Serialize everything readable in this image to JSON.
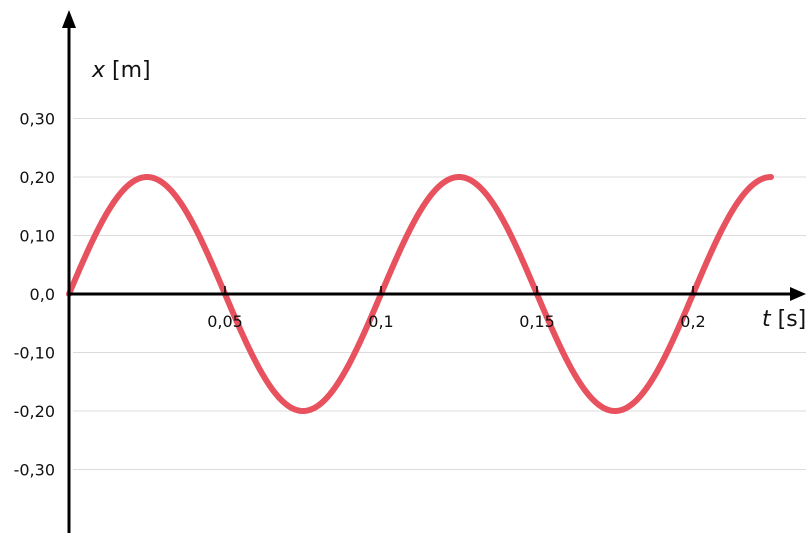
{
  "chart_data": {
    "type": "line",
    "title": "",
    "xlabel": {
      "var": "t",
      "unit": " [s]"
    },
    "ylabel": {
      "var": "x",
      "unit": " [m]"
    },
    "xlim": [
      0,
      0.225
    ],
    "ylim": [
      -0.4,
      0.4
    ],
    "grid": true,
    "x_ticks": [
      {
        "value": 0.05,
        "label": "0,05"
      },
      {
        "value": 0.1,
        "label": "0,1"
      },
      {
        "value": 0.15,
        "label": "0,15"
      },
      {
        "value": 0.2,
        "label": "0,2"
      }
    ],
    "y_ticks": [
      {
        "value": 0.3,
        "label": "0,30"
      },
      {
        "value": 0.2,
        "label": "0,20"
      },
      {
        "value": 0.1,
        "label": "0,10"
      },
      {
        "value": 0.0,
        "label": "0,0"
      },
      {
        "value": -0.1,
        "label": "-0,10"
      },
      {
        "value": -0.2,
        "label": "-0,20"
      },
      {
        "value": -0.3,
        "label": "-0,30"
      }
    ],
    "series": [
      {
        "function": "x = A·sin(2πt/T)",
        "amplitude": 0.2,
        "period": 0.1,
        "t_range": [
          0,
          0.225
        ],
        "color": "#e8525f"
      }
    ]
  }
}
